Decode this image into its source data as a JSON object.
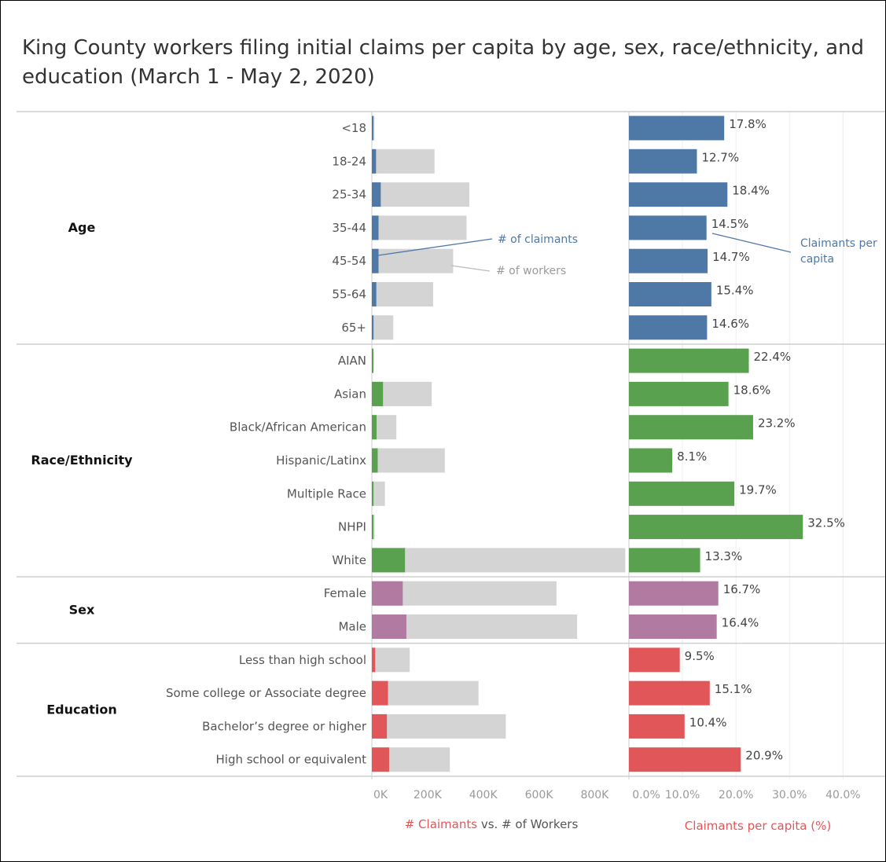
{
  "title": "King County workers filing initial claims per capita by age, sex, race/ethnicity, and education (March 1 - May 2, 2020)",
  "colors": {
    "age": "#4e79a7",
    "race": "#59a14f",
    "sex": "#b07aa1",
    "education": "#e15759",
    "workers": "#d4d4d4",
    "axis_title": "#e15759",
    "annotation_claimants": "#4e79a7",
    "annotation_workers": "#9a9a9a"
  },
  "annotations": {
    "claimants": "# of claimants",
    "workers": "# of workers",
    "per_capita_line1": "Claimants per",
    "per_capita_line2": "capita"
  },
  "chart_data": {
    "type": "bar",
    "groups": [
      {
        "name": "Age",
        "color_key": "age",
        "rows": [
          {
            "category": "<18",
            "claimants": 1500,
            "workers": 9500,
            "per_capita": 17.8,
            "label": "17.8%"
          },
          {
            "category": "18-24",
            "claimants": 15000,
            "workers": 225000,
            "per_capita": 12.7,
            "label": "12.7%"
          },
          {
            "category": "25-34",
            "claimants": 32000,
            "workers": 350000,
            "per_capita": 18.4,
            "label": "18.4%"
          },
          {
            "category": "35-44",
            "claimants": 24000,
            "workers": 340000,
            "per_capita": 14.5,
            "label": "14.5%"
          },
          {
            "category": "45-54",
            "claimants": 24000,
            "workers": 292000,
            "per_capita": 14.7,
            "label": "14.7%"
          },
          {
            "category": "55-64",
            "claimants": 16000,
            "workers": 220000,
            "per_capita": 15.4,
            "label": "15.4%"
          },
          {
            "category": "65+",
            "claimants": 6000,
            "workers": 77000,
            "per_capita": 14.6,
            "label": "14.6%"
          }
        ]
      },
      {
        "name": "Race/Ethnicity",
        "color_key": "race",
        "rows": [
          {
            "category": "AIAN",
            "claimants": 1000,
            "workers": 4000,
            "per_capita": 22.4,
            "label": "22.4%"
          },
          {
            "category": "Asian",
            "claimants": 40000,
            "workers": 215000,
            "per_capita": 18.6,
            "label": "18.6%"
          },
          {
            "category": "Black/African American",
            "claimants": 17000,
            "workers": 88000,
            "per_capita": 23.2,
            "label": "23.2%"
          },
          {
            "category": "Hispanic/Latinx",
            "claimants": 21000,
            "workers": 262000,
            "per_capita": 8.1,
            "label": "8.1%"
          },
          {
            "category": "Multiple Race",
            "claimants": 6000,
            "workers": 47000,
            "per_capita": 19.7,
            "label": "19.7%"
          },
          {
            "category": "NHPI",
            "claimants": 3000,
            "workers": 10000,
            "per_capita": 32.5,
            "label": "32.5%"
          },
          {
            "category": "White",
            "claimants": 119000,
            "workers": 910000,
            "per_capita": 13.3,
            "label": "13.3%"
          }
        ]
      },
      {
        "name": "Sex",
        "color_key": "sex",
        "rows": [
          {
            "category": "Female",
            "claimants": 111000,
            "workers": 663000,
            "per_capita": 16.7,
            "label": "16.7%"
          },
          {
            "category": "Male",
            "claimants": 124000,
            "workers": 737000,
            "per_capita": 16.4,
            "label": "16.4%"
          }
        ]
      },
      {
        "name": "Education",
        "color_key": "education",
        "rows": [
          {
            "category": "Less than high school",
            "claimants": 12000,
            "workers": 136000,
            "per_capita": 9.5,
            "label": "9.5%"
          },
          {
            "category": "Some college or Associate degree",
            "claimants": 58000,
            "workers": 383000,
            "per_capita": 15.1,
            "label": "15.1%"
          },
          {
            "category": "Bachelor’s degree or higher",
            "claimants": 54000,
            "workers": 481000,
            "per_capita": 10.4,
            "label": "10.4%"
          },
          {
            "category": "High school or equivalent",
            "claimants": 62000,
            "workers": 280000,
            "per_capita": 20.9,
            "label": "20.9%"
          }
        ]
      }
    ],
    "left_axis": {
      "range": [
        0,
        940000
      ],
      "ticks": [
        0,
        200000,
        400000,
        600000,
        800000
      ],
      "tick_labels": [
        "0K",
        "200K",
        "400K",
        "600K",
        "800K"
      ],
      "title_part1": "# Claimants",
      "title_part2": " vs. # of Workers"
    },
    "right_axis": {
      "range": [
        0,
        47
      ],
      "ticks": [
        0,
        10,
        20,
        30,
        40
      ],
      "tick_labels": [
        "0.0%",
        "10.0%",
        "20.0%",
        "30.0%",
        "40.0%"
      ],
      "title": "Claimants per capita (%)"
    },
    "grid": true,
    "legend": "none"
  }
}
